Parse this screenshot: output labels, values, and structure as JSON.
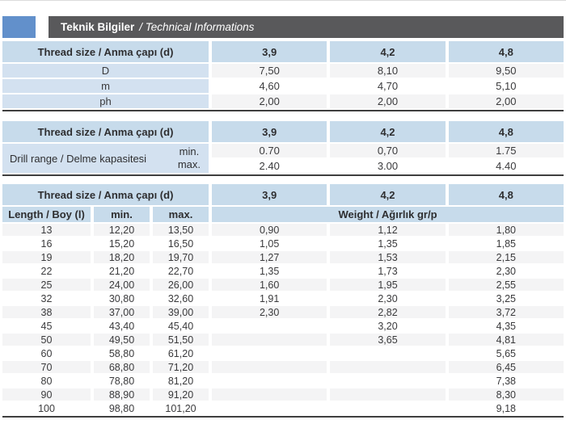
{
  "title": {
    "main": "Teknik Bilgiler",
    "sub": "/ Technical Informations"
  },
  "colors": {
    "accent_blue": "#6290cb",
    "titlebar_gray": "#59595b",
    "header_blue": "#c7dbeb",
    "label_blue": "#d3e1f0",
    "stripe_gray": "#f4f4f5",
    "divider_dark": "#3f3f3f",
    "text_dark": "#2e2e30"
  },
  "dimensions_table": {
    "header": {
      "label": "Thread size / Anma çapı (d)",
      "sizes": [
        "3,9",
        "4,2",
        "4,8"
      ]
    },
    "rows": [
      {
        "label": "D",
        "values": [
          "7,50",
          "8,10",
          "9,50"
        ]
      },
      {
        "label": "m",
        "values": [
          "4,60",
          "4,70",
          "5,10"
        ]
      },
      {
        "label": "ph",
        "values": [
          "2,00",
          "2,00",
          "2,00"
        ]
      }
    ]
  },
  "drill_table": {
    "header": {
      "label": "Thread size / Anma çapı (d)",
      "sizes": [
        "3,9",
        "4,2",
        "4,8"
      ]
    },
    "row_label": "Drill range / Delme kapasitesi",
    "sub_rows": [
      {
        "label": "min.",
        "values": [
          "0.70",
          "0,70",
          "1.75"
        ]
      },
      {
        "label": "max.",
        "values": [
          "2.40",
          "3.00",
          "4.40"
        ]
      }
    ]
  },
  "length_weight_table": {
    "header": {
      "label": "Thread size / Anma çapı (d)",
      "sizes": [
        "3,9",
        "4,2",
        "4,8"
      ]
    },
    "subheader": {
      "length": "Length / Boy (l)",
      "min": "min.",
      "max": "max.",
      "weight": "Weight / Ağırlık gr/p"
    },
    "rows": [
      {
        "length": "13",
        "min": "12,20",
        "max": "13,50",
        "weights": [
          "0,90",
          "1,12",
          "1,80"
        ]
      },
      {
        "length": "16",
        "min": "15,20",
        "max": "16,50",
        "weights": [
          "1,05",
          "1,35",
          "1,85"
        ]
      },
      {
        "length": "19",
        "min": "18,20",
        "max": "19,70",
        "weights": [
          "1,27",
          "1,53",
          "2,15"
        ]
      },
      {
        "length": "22",
        "min": "21,20",
        "max": "22,70",
        "weights": [
          "1,35",
          "1,73",
          "2,30"
        ]
      },
      {
        "length": "25",
        "min": "24,00",
        "max": "26,00",
        "weights": [
          "1,60",
          "1,95",
          "2,55"
        ]
      },
      {
        "length": "32",
        "min": "30,80",
        "max": "32,60",
        "weights": [
          "1,91",
          "2,30",
          "3,25"
        ]
      },
      {
        "length": "38",
        "min": "37,00",
        "max": "39,00",
        "weights": [
          "2,30",
          "2,82",
          "3,72"
        ]
      },
      {
        "length": "45",
        "min": "43,40",
        "max": "45,40",
        "weights": [
          "",
          "3,20",
          "4,35"
        ]
      },
      {
        "length": "50",
        "min": "49,50",
        "max": "51,50",
        "weights": [
          "",
          "3,65",
          "4,81"
        ]
      },
      {
        "length": "60",
        "min": "58,80",
        "max": "61,20",
        "weights": [
          "",
          "",
          "5,65"
        ]
      },
      {
        "length": "70",
        "min": "68,80",
        "max": "71,20",
        "weights": [
          "",
          "",
          "6,45"
        ]
      },
      {
        "length": "80",
        "min": "78,80",
        "max": "81,20",
        "weights": [
          "",
          "",
          "7,38"
        ]
      },
      {
        "length": "90",
        "min": "88,90",
        "max": "91,20",
        "weights": [
          "",
          "",
          "8,30"
        ]
      },
      {
        "length": "100",
        "min": "98,80",
        "max": "101,20",
        "weights": [
          "",
          "",
          "9,18"
        ]
      }
    ]
  }
}
